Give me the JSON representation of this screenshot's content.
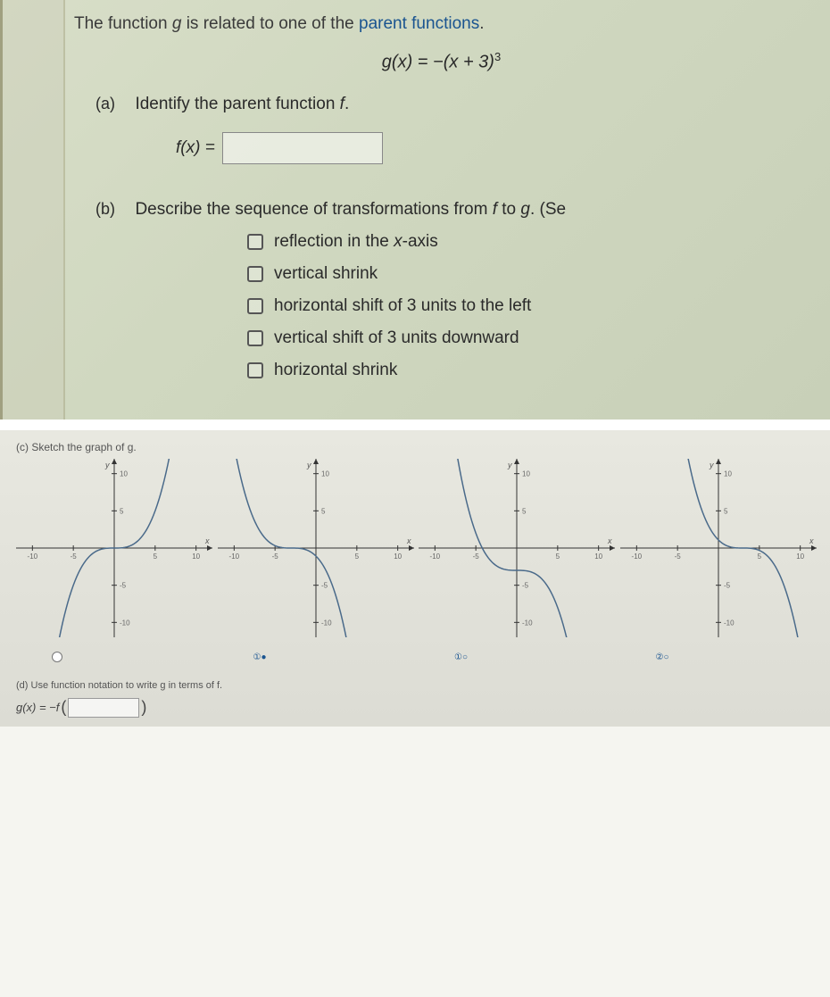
{
  "intro": {
    "prefix": "The function ",
    "fn": "g",
    "mid": " is related to one of the ",
    "link": "parent functions",
    "suffix": "."
  },
  "formula": {
    "lhs": "g",
    "var": "x",
    "rhs_text": "−(x + 3)",
    "exp": "3"
  },
  "part_a": {
    "label": "(a)",
    "text": "Identify the parent function ",
    "fvar": "f",
    "fx_label": "f(x) ="
  },
  "part_b": {
    "label": "(b)",
    "text_prefix": "Describe the sequence of transformations from ",
    "f": "f",
    "mid": " to ",
    "g": "g",
    "suffix": ". (Se",
    "options": [
      "reflection in the x-axis",
      "vertical shrink",
      "horizontal shift of 3 units to the left",
      "vertical shift of 3 units downward",
      "horizontal shrink"
    ]
  },
  "part_c": {
    "label": "(c)   Sketch the graph of g.",
    "graphs": [
      {
        "type": "cubic",
        "reflect": false,
        "x_shift": 0,
        "y_shift": 0,
        "xlim": [
          -12,
          12
        ],
        "ylim": [
          -12,
          12
        ],
        "xticks": [
          -10,
          -5,
          5,
          10
        ],
        "yticks": [
          -10,
          -5,
          5,
          10
        ],
        "curve_color": "#4a6a8a",
        "axis_color": "#333333",
        "grid_color": "#c0c0b0",
        "selected": false,
        "sel_icon": ""
      },
      {
        "type": "cubic",
        "reflect": true,
        "x_shift": -3,
        "y_shift": 0,
        "xlim": [
          -12,
          12
        ],
        "ylim": [
          -12,
          12
        ],
        "xticks": [
          -10,
          -5,
          5,
          10
        ],
        "yticks": [
          -10,
          -5,
          5,
          10
        ],
        "curve_color": "#4a6a8a",
        "axis_color": "#333333",
        "grid_color": "#c0c0b0",
        "selected": true,
        "sel_icon": "①●"
      },
      {
        "type": "cubic",
        "reflect": true,
        "x_shift": 0,
        "y_shift": -3,
        "xlim": [
          -12,
          12
        ],
        "ylim": [
          -12,
          12
        ],
        "xticks": [
          -10,
          -5,
          5,
          10
        ],
        "yticks": [
          -10,
          -5,
          5,
          10
        ],
        "curve_color": "#4a6a8a",
        "axis_color": "#333333",
        "grid_color": "#c0c0b0",
        "selected": false,
        "sel_icon": "①○"
      },
      {
        "type": "cubic",
        "reflect": true,
        "x_shift": 3,
        "y_shift": 0,
        "xlim": [
          -12,
          12
        ],
        "ylim": [
          -12,
          12
        ],
        "xticks": [
          -10,
          -5,
          5,
          10
        ],
        "yticks": [
          -10,
          -5,
          5,
          10
        ],
        "curve_color": "#4a6a8a",
        "axis_color": "#333333",
        "grid_color": "#c0c0b0",
        "selected": false,
        "sel_icon": "②○"
      }
    ]
  },
  "part_d": {
    "label": "(d)   Use function notation to write g in terms of f.",
    "gx_prefix": "g(x) = −f",
    "paren_open": "(",
    "paren_close": ")"
  }
}
